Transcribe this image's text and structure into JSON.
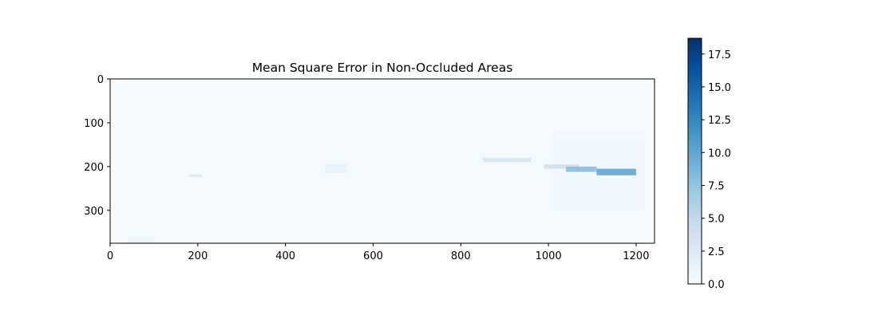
{
  "chart_data": {
    "type": "heatmap",
    "title": "Mean Square Error in Non-Occluded Areas",
    "xlabel": "",
    "ylabel": "",
    "image_width": 1242,
    "image_height": 375,
    "xlim": [
      0,
      1242
    ],
    "ylim": [
      375,
      0
    ],
    "y_axis_inverted": true,
    "xticks": [
      0,
      200,
      400,
      600,
      800,
      1000,
      1200
    ],
    "yticks": [
      0,
      100,
      200,
      300
    ],
    "grid": false,
    "colormap": "Blues",
    "colorbar": {
      "min": 0.0,
      "max": 18.7,
      "ticks": [
        0.0,
        2.5,
        5.0,
        7.5,
        10.0,
        12.5,
        15.0,
        17.5
      ],
      "tick_labels": [
        "0.0",
        "2.5",
        "5.0",
        "7.5",
        "10.0",
        "12.5",
        "15.0",
        "17.5"
      ],
      "placement": "right"
    },
    "regions": [
      {
        "x": [
          30,
          1220
        ],
        "y": [
          140,
          375
        ],
        "value": 0.3
      },
      {
        "x": [
          1010,
          1220
        ],
        "y": [
          115,
          300
        ],
        "value": 0.6
      },
      {
        "x": [
          850,
          960
        ],
        "y": [
          180,
          190
        ],
        "value": 3.0
      },
      {
        "x": [
          990,
          1070
        ],
        "y": [
          195,
          205
        ],
        "value": 4.0
      },
      {
        "x": [
          1040,
          1110
        ],
        "y": [
          200,
          212
        ],
        "value": 8.0
      },
      {
        "x": [
          1110,
          1200
        ],
        "y": [
          205,
          220
        ],
        "value": 10.0
      },
      {
        "x": [
          490,
          540
        ],
        "y": [
          195,
          215
        ],
        "value": 1.5
      },
      {
        "x": [
          180,
          210
        ],
        "y": [
          218,
          224
        ],
        "value": 2.5
      },
      {
        "x": [
          40,
          100
        ],
        "y": [
          360,
          375
        ],
        "value": 1.0
      }
    ]
  }
}
